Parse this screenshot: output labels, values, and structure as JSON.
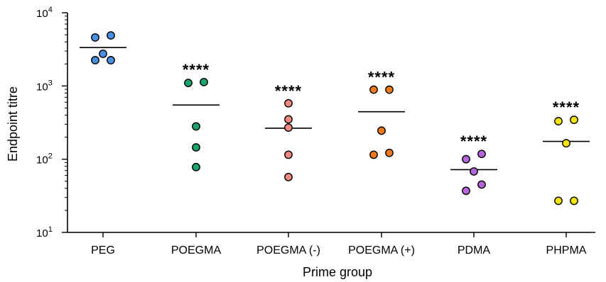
{
  "chart_data": {
    "type": "scatter",
    "title": "",
    "xlabel": "Prime group",
    "ylabel": "Endpoint titre",
    "yscale": "log",
    "ylim": [
      10,
      10000
    ],
    "yticks": [
      {
        "value": 10,
        "base": "10",
        "exp": "1"
      },
      {
        "value": 100,
        "base": "10",
        "exp": "2"
      },
      {
        "value": 1000,
        "base": "10",
        "exp": "3"
      },
      {
        "value": 10000,
        "base": "10",
        "exp": "4"
      }
    ],
    "grid": false,
    "legend": "none",
    "categories": [
      "PEG",
      "POEGMA",
      "POEGMA (-)",
      "POEGMA (+)",
      "PDMA",
      "PHPMA"
    ],
    "series": [
      {
        "category": "PEG",
        "color": "#4a90e2",
        "values": [
          4600,
          4900,
          2750,
          2250,
          2250
        ],
        "mean": 3350,
        "annotation": ""
      },
      {
        "category": "POEGMA",
        "color": "#1aa56e",
        "values": [
          1100,
          1130,
          280,
          145,
          78
        ],
        "mean": 550,
        "annotation": "****"
      },
      {
        "category": "POEGMA (-)",
        "color": "#f08a80",
        "values": [
          580,
          350,
          270,
          115,
          57
        ],
        "mean": 265,
        "annotation": "****"
      },
      {
        "category": "POEGMA (+)",
        "color": "#f07a1a",
        "values": [
          890,
          890,
          245,
          115,
          122
        ],
        "mean": 445,
        "annotation": "****"
      },
      {
        "category": "PDMA",
        "color": "#b266d9",
        "values": [
          100,
          118,
          68,
          45,
          37
        ],
        "mean": 72,
        "annotation": "****"
      },
      {
        "category": "PHPMA",
        "color": "#f5e60a",
        "values": [
          330,
          345,
          165,
          27,
          27
        ],
        "mean": 175,
        "annotation": "****"
      }
    ]
  }
}
